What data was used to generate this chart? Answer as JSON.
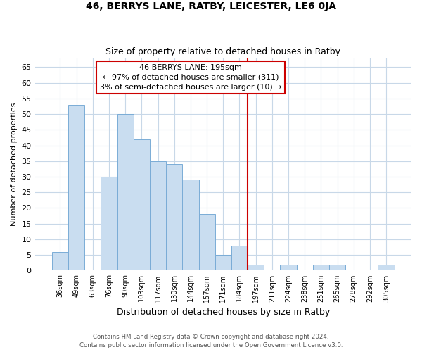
{
  "title": "46, BERRYS LANE, RATBY, LEICESTER, LE6 0JA",
  "subtitle": "Size of property relative to detached houses in Ratby",
  "xlabel": "Distribution of detached houses by size in Ratby",
  "ylabel": "Number of detached properties",
  "bar_labels": [
    "36sqm",
    "49sqm",
    "63sqm",
    "76sqm",
    "90sqm",
    "103sqm",
    "117sqm",
    "130sqm",
    "144sqm",
    "157sqm",
    "171sqm",
    "184sqm",
    "197sqm",
    "211sqm",
    "224sqm",
    "238sqm",
    "251sqm",
    "265sqm",
    "278sqm",
    "292sqm",
    "305sqm"
  ],
  "bar_values": [
    6,
    53,
    0,
    30,
    50,
    42,
    35,
    34,
    29,
    18,
    5,
    8,
    2,
    0,
    2,
    0,
    2,
    2,
    0,
    0,
    2
  ],
  "bar_color": "#c9ddf0",
  "bar_edge_color": "#7aacd6",
  "vline_index": 12,
  "vline_color": "#cc0000",
  "annotation_title": "46 BERRYS LANE: 195sqm",
  "annotation_line1": "← 97% of detached houses are smaller (311)",
  "annotation_line2": "3% of semi-detached houses are larger (10) →",
  "ylim": [
    0,
    68
  ],
  "yticks": [
    0,
    5,
    10,
    15,
    20,
    25,
    30,
    35,
    40,
    45,
    50,
    55,
    60,
    65
  ],
  "footer_line1": "Contains HM Land Registry data © Crown copyright and database right 2024.",
  "footer_line2": "Contains public sector information licensed under the Open Government Licence v3.0.",
  "bg_color": "#ffffff",
  "grid_color": "#c8d8e8"
}
